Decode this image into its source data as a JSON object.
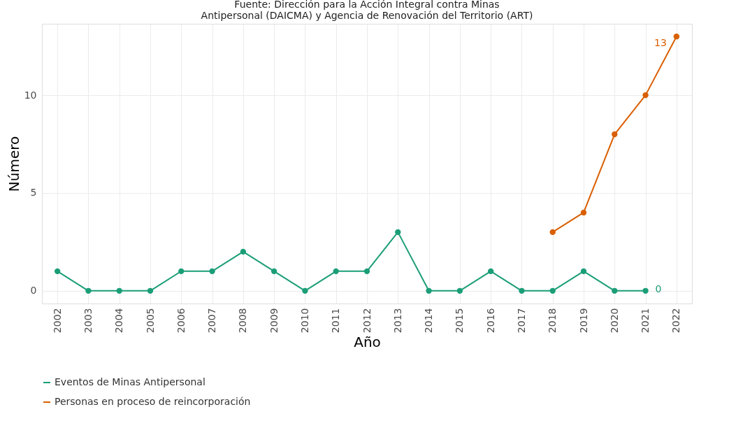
{
  "chart_data": {
    "type": "line",
    "annotations": [
      "Fuente: Dirección para la Acción Integral contra Minas",
      "Antipersonal (DAICMA) y Agencia de Renovación del Territorio (ART)",
      {
        "text": "0",
        "x": "2021",
        "y": 0
      },
      {
        "text": "13",
        "x": "2022",
        "y": 13
      }
    ],
    "xlabel": "Año",
    "ylabel": "Número",
    "categories": [
      "2002",
      "2003",
      "2004",
      "2005",
      "2006",
      "2007",
      "2008",
      "2009",
      "2010",
      "2011",
      "2012",
      "2013",
      "2014",
      "2015",
      "2016",
      "2017",
      "2018",
      "2019",
      "2020",
      "2021",
      "2022"
    ],
    "series": [
      {
        "name": "Eventos de Minas Antipersonal",
        "color": "#1b9e77",
        "values": [
          1,
          0,
          0,
          0,
          1,
          1,
          2,
          1,
          0,
          1,
          1,
          3,
          0,
          0,
          1,
          0,
          0,
          1,
          0,
          0,
          null
        ]
      },
      {
        "name": "Personas en proceso de reincorporación",
        "color": "#d95f02",
        "values": [
          null,
          null,
          null,
          null,
          null,
          null,
          null,
          null,
          null,
          null,
          null,
          null,
          null,
          null,
          null,
          null,
          3,
          4,
          8,
          10,
          13
        ]
      }
    ],
    "ylim": [
      -0.65,
      13.65
    ],
    "yticks": [
      0,
      5,
      10
    ],
    "grid": true,
    "legend": "bottom",
    "marker": "circle",
    "line_style": "solid"
  }
}
